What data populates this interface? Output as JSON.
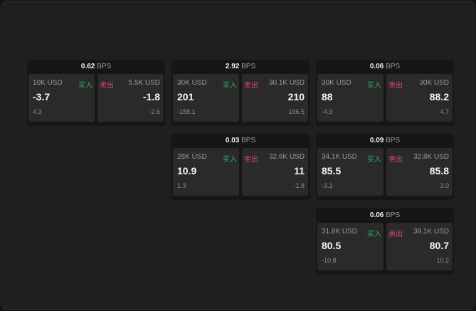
{
  "widgets": [
    {
      "spread": "0.62",
      "unit": "BPS",
      "buy": {
        "qty": "10K USD",
        "label": "买入",
        "price": "-3.7",
        "change": "4.3"
      },
      "sell": {
        "qty": "5.5K USD",
        "label": "卖出",
        "price": "-1.8",
        "change": "-2.6"
      }
    },
    {
      "spread": "2.92",
      "unit": "BPS",
      "buy": {
        "qty": "30K USD",
        "label": "买入",
        "price": "201",
        "change": "-188.1"
      },
      "sell": {
        "qty": "30.1K USD",
        "label": "卖出",
        "price": "210",
        "change": "196.5"
      }
    },
    {
      "spread": "0.06",
      "unit": "BPS",
      "buy": {
        "qty": "30K USD",
        "label": "买入",
        "price": "88",
        "change": "-4.9"
      },
      "sell": {
        "qty": "30K USD",
        "label": "卖出",
        "price": "88.2",
        "change": "4.7"
      }
    },
    {
      "spread": "0.03",
      "unit": "BPS",
      "buy": {
        "qty": "28K USD",
        "label": "买入",
        "price": "10.9",
        "change": "1.3"
      },
      "sell": {
        "qty": "32.6K USD",
        "label": "卖出",
        "price": "11",
        "change": "-1.8"
      }
    },
    {
      "spread": "0.09",
      "unit": "BPS",
      "buy": {
        "qty": "34.1K USD",
        "label": "买入",
        "price": "85.5",
        "change": "-3.1"
      },
      "sell": {
        "qty": "32.8K USD",
        "label": "卖出",
        "price": "85.8",
        "change": "3.0"
      }
    },
    {
      "spread": "0.06",
      "unit": "BPS",
      "buy": {
        "qty": "31.8K USD",
        "label": "买入",
        "price": "80.5",
        "change": "-10.8"
      },
      "sell": {
        "qty": "39.1K USD",
        "label": "卖出",
        "price": "80.7",
        "change": "10.2"
      }
    }
  ],
  "colors": {
    "buy": "#2fae5f",
    "sell": "#e0466f"
  }
}
